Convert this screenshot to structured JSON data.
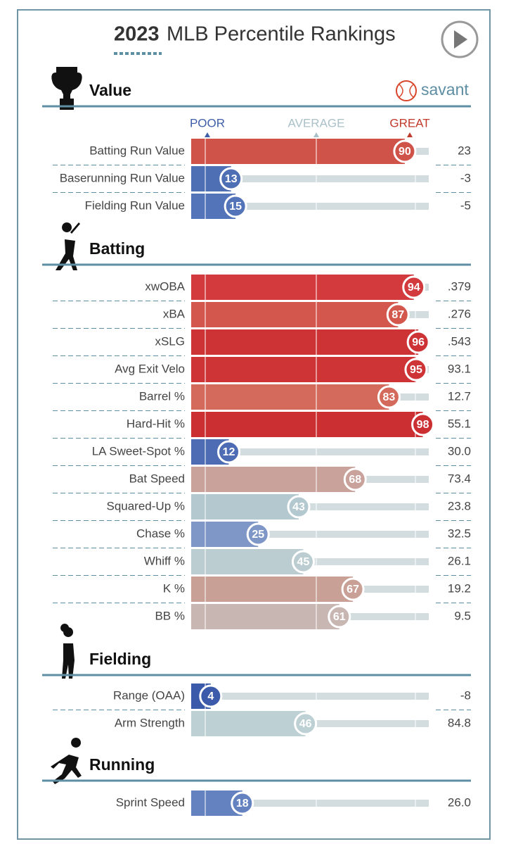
{
  "chart_data": {
    "type": "bar",
    "title_year": "2023",
    "title": "MLB Percentile Rankings",
    "brand": "savant",
    "scale_labels": [
      "POOR",
      "AVERAGE",
      "GREAT"
    ],
    "xlim": [
      0,
      100
    ],
    "sections": [
      {
        "title": "Value",
        "metrics": [
          "Batting Run Value",
          "Baserunning Run Value",
          "Fielding Run Value"
        ],
        "percentiles": [
          90,
          13,
          15
        ],
        "stats": [
          "23",
          "-3",
          "-5"
        ],
        "colors": [
          "#d0534a",
          "#4f6fb5",
          "#5374b8"
        ]
      },
      {
        "title": "Batting",
        "metrics": [
          "xwOBA",
          "xBA",
          "xSLG",
          "Avg Exit Velo",
          "Barrel %",
          "Hard-Hit %",
          "LA Sweet-Spot %",
          "Bat Speed",
          "Squared-Up %",
          "Chase %",
          "Whiff %",
          "K %",
          "BB %"
        ],
        "percentiles": [
          94,
          87,
          96,
          95,
          83,
          98,
          12,
          68,
          43,
          25,
          45,
          67,
          61
        ],
        "stats": [
          ".379",
          ".276",
          ".543",
          "93.1",
          "12.7",
          "55.1",
          "30.0",
          "73.4",
          "23.8",
          "32.5",
          "26.1",
          "19.2",
          "9.5"
        ],
        "colors": [
          "#d33a3d",
          "#d4574d",
          "#cd3235",
          "#ce3436",
          "#d46a5c",
          "#cb2f31",
          "#4d6cb3",
          "#c9a29b",
          "#b4c8d0",
          "#7f97c6",
          "#bccdd2",
          "#c9a096",
          "#c8b6b3"
        ]
      },
      {
        "title": "Fielding",
        "metrics": [
          "Range (OAA)",
          "Arm Strength"
        ],
        "percentiles": [
          4,
          46
        ],
        "stats": [
          "-8",
          "84.8"
        ],
        "colors": [
          "#3b5aaa",
          "#bdd0d3"
        ]
      },
      {
        "title": "Running",
        "metrics": [
          "Sprint Speed"
        ],
        "percentiles": [
          18
        ],
        "stats": [
          "26.0"
        ],
        "colors": [
          "#6482c0"
        ]
      }
    ]
  }
}
